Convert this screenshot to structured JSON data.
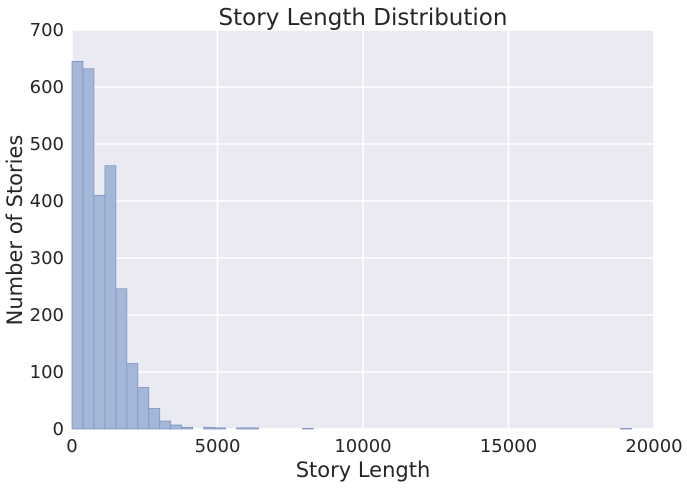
{
  "chart_data": {
    "type": "bar",
    "title": "Story Length Distribution",
    "xlabel": "Story Length",
    "ylabel": "Number of Stories",
    "xlim": [
      0,
      20000
    ],
    "ylim": [
      0,
      700
    ],
    "xticks": [
      0,
      5000,
      10000,
      15000,
      20000
    ],
    "yticks": [
      0,
      100,
      200,
      300,
      400,
      500,
      600,
      700
    ],
    "bin_width": 377,
    "bins_start": [
      0,
      377,
      754,
      1131,
      1508,
      1885,
      2262,
      2639,
      3016,
      3393,
      3770,
      4524,
      4901,
      5655,
      6032,
      7918,
      18850
    ],
    "values": [
      645,
      632,
      410,
      462,
      246,
      115,
      73,
      36,
      14,
      7,
      3,
      3,
      2,
      2,
      2,
      1,
      1
    ],
    "grid": true,
    "colors": {
      "bar_fill": "#a5b7d8",
      "bar_edge": "#7b8fbd",
      "plot_bg": "#eaeaf2",
      "grid": "#ffffff"
    }
  }
}
